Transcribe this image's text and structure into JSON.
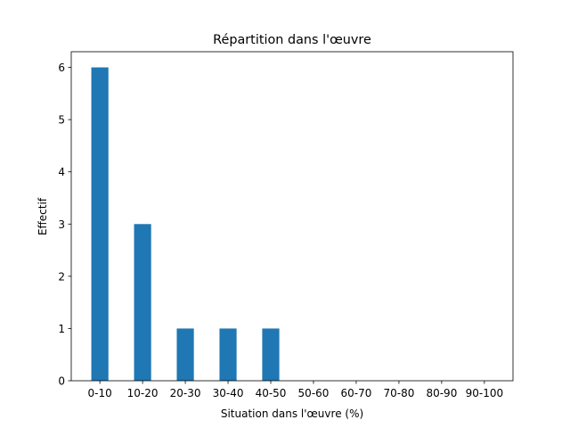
{
  "chart_data": {
    "type": "bar",
    "title": "Répartition dans l'œuvre",
    "x_label": "Situation dans l'œuvre (%)",
    "y_label": "Effectif",
    "categories": [
      "0-10",
      "10-20",
      "20-30",
      "30-40",
      "40-50",
      "50-60",
      "60-70",
      "70-80",
      "80-90",
      "90-100"
    ],
    "values": [
      6,
      3,
      1,
      1,
      1,
      0,
      0,
      0,
      0,
      0
    ],
    "color": "#1f77b4",
    "ylim": [
      0,
      6.3
    ],
    "yticks": [
      0,
      1,
      2,
      3,
      4,
      5,
      6
    ],
    "grid": false
  }
}
